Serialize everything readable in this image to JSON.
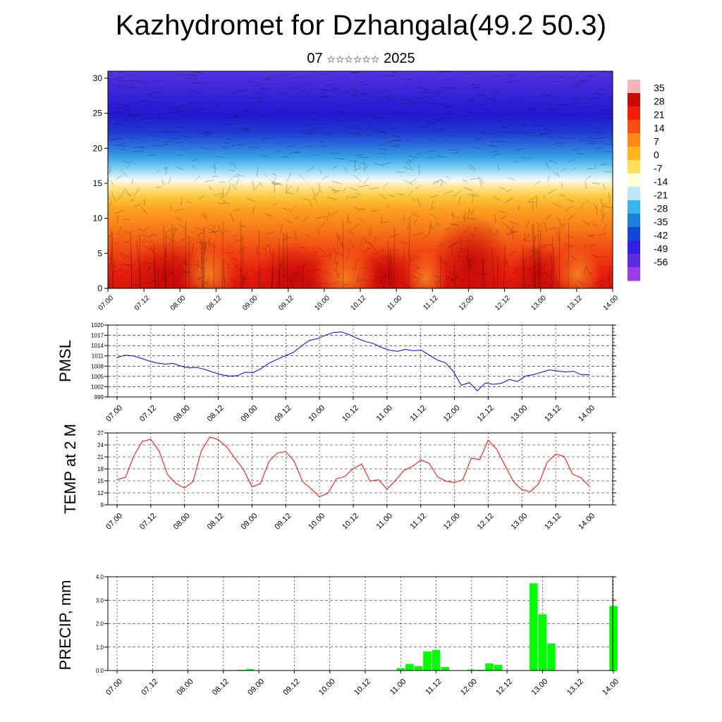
{
  "page": {
    "title": "Kazhydromet for Dzhangala(49.2 50.3)",
    "subtitle_day": "07",
    "subtitle_month_glyphs": "☆☆☆☆☆☆",
    "subtitle_year": "2025"
  },
  "chart_data": [
    {
      "id": "cross-section",
      "type": "heatmap",
      "title": "",
      "xlabel": "",
      "ylabel": "",
      "x_ticks": [
        "07.00",
        "07.12",
        "08.00",
        "08.12",
        "09.00",
        "09.12",
        "10.00",
        "10.12",
        "11.00",
        "11.12",
        "12.00",
        "12.12",
        "13.00",
        "13.12",
        "14.00"
      ],
      "y_ticks": [
        0,
        5,
        10,
        15,
        20,
        25,
        30
      ],
      "ylim": [
        0,
        31
      ],
      "colorbar_labels": [
        35,
        28,
        21,
        14,
        7,
        0,
        -7,
        -14,
        -21,
        -28,
        -35,
        -42,
        -49,
        -56
      ],
      "colorbar_colors": [
        "#f2b6b6",
        "#c80a0a",
        "#f21d0a",
        "#f54e0f",
        "#f98a16",
        "#fdb51e",
        "#ffe05c",
        "#fffed8",
        "#bfe8f7",
        "#36b6ea",
        "#1980dc",
        "#1446d8",
        "#3020e0",
        "#5b2ce0",
        "#9c3ce8"
      ],
      "wind_barbs": "overlay",
      "temperature_bands": [
        {
          "z": [
            0,
            6
          ],
          "range": "21..35",
          "color": "#e8210e"
        },
        {
          "z": [
            6,
            12
          ],
          "range": "7..21",
          "color": "#f8781a"
        },
        {
          "z": [
            12,
            16
          ],
          "range": "-7..7",
          "color": "#fdd040"
        },
        {
          "z": [
            16,
            20
          ],
          "range": "-28..-7",
          "color": "#60c4ee"
        },
        {
          "z": [
            20,
            24
          ],
          "range": "-49..-28",
          "color": "#2040d6"
        },
        {
          "z": [
            24,
            31
          ],
          "range": "-56..-49",
          "color": "#4a2ad8"
        }
      ]
    },
    {
      "id": "pmsl",
      "type": "line",
      "ylabel": "PMSL",
      "ylim": [
        999,
        1020
      ],
      "y_ticks": [
        999,
        1002,
        1005,
        1008,
        1011,
        1014,
        1017,
        1020
      ],
      "x_ticks": [
        "07.00",
        "07.12",
        "08.00",
        "08.12",
        "09.00",
        "09.12",
        "10.00",
        "10.12",
        "11.00",
        "11.12",
        "12.00",
        "12.12",
        "13.00",
        "13.12",
        "14.00"
      ],
      "series": [
        {
          "color": "#0000ff",
          "values": [
            1010.5,
            1011.2,
            1011.0,
            1010.3,
            1009.5,
            1008.9,
            1008.6,
            1008.8,
            1008.0,
            1007.5,
            1007.6,
            1007.0,
            1006.2,
            1005.5,
            1005.1,
            1005.2,
            1006.2,
            1006.1,
            1007.3,
            1008.9,
            1010.0,
            1011.0,
            1012.0,
            1013.8,
            1015.5,
            1016.0,
            1017.0,
            1017.8,
            1018.0,
            1017.2,
            1016.1,
            1015.2,
            1014.6,
            1013.5,
            1012.7,
            1012.3,
            1012.9,
            1012.5,
            1012.7,
            1011.2,
            1009.8,
            1009.0,
            1006.5,
            1002.4,
            1003.2,
            1000.8,
            1003.1,
            1002.7,
            1003.0,
            1004.1,
            1003.5,
            1005.1,
            1005.5,
            1006.2,
            1006.9,
            1006.6,
            1006.3,
            1006.5,
            1005.5,
            1005.5
          ]
        }
      ]
    },
    {
      "id": "temp2m",
      "type": "line",
      "ylabel": "TEMP at 2 M",
      "ylim": [
        9,
        27
      ],
      "y_ticks": [
        9,
        12,
        15,
        18,
        21,
        24,
        27
      ],
      "x_ticks": [
        "07.00",
        "07.12",
        "08.00",
        "08.12",
        "09.00",
        "09.12",
        "10.00",
        "10.12",
        "11.00",
        "11.12",
        "12.00",
        "12.12",
        "13.00",
        "13.12",
        "14.00"
      ],
      "series": [
        {
          "color": "#ff0000",
          "values": [
            15.3,
            15.9,
            21.3,
            24.9,
            25.4,
            22.4,
            16.5,
            14.3,
            13.2,
            14.8,
            22.5,
            26.0,
            25.3,
            23.5,
            20.6,
            17.8,
            13.5,
            14.3,
            19.8,
            22.0,
            22.3,
            19.9,
            14.8,
            13.0,
            11.0,
            11.9,
            15.5,
            16.1,
            18.1,
            19.2,
            14.9,
            15.3,
            12.9,
            15.1,
            17.6,
            18.6,
            20.2,
            19.4,
            16.0,
            14.9,
            14.6,
            15.3,
            20.7,
            20.3,
            25.2,
            22.9,
            18.8,
            14.8,
            12.8,
            12.3,
            14.3,
            19.7,
            21.7,
            21.1,
            16.7,
            15.8,
            13.6
          ]
        }
      ]
    },
    {
      "id": "precip",
      "type": "bar",
      "ylabel": "PRECIP, mm",
      "ylim": [
        0,
        4
      ],
      "y_ticks": [
        "0.0",
        "1.0",
        "2.0",
        "3.0",
        "4.0"
      ],
      "x_ticks": [
        "07.00",
        "07.12",
        "08.00",
        "08.12",
        "09.00",
        "09.12",
        "10.00",
        "10.12",
        "11.00",
        "11.12",
        "12.00",
        "12.12",
        "13.00",
        "13.12",
        "14.00"
      ],
      "series": [
        {
          "color": "#00ff00",
          "values": [
            0,
            0,
            0,
            0,
            0,
            0,
            0,
            0,
            0,
            0,
            0,
            0,
            0.01,
            0.02,
            0.03,
            0.06,
            0,
            0,
            0,
            0,
            0,
            0,
            0,
            0,
            0,
            0,
            0,
            0,
            0,
            0,
            0,
            0,
            0.1,
            0.28,
            0.18,
            0.82,
            0.88,
            0.15,
            0,
            0,
            0.04,
            0.03,
            0.3,
            0.24,
            0,
            0,
            0,
            3.72,
            2.4,
            1.15,
            0,
            0,
            0,
            0,
            0,
            0,
            2.75
          ]
        }
      ]
    }
  ]
}
